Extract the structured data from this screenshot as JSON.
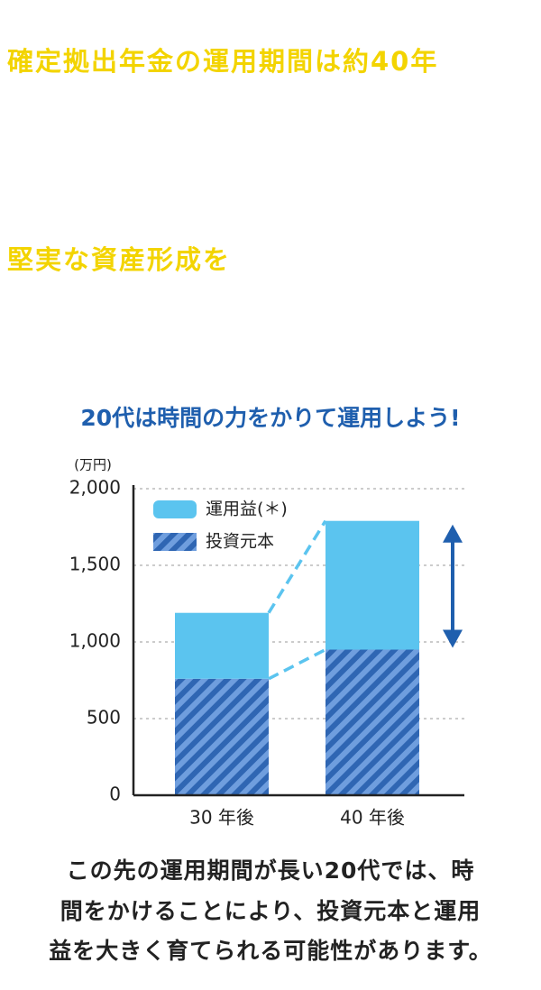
{
  "header": {
    "lines": [
      "確定拠出年金の運用期間は約40年",
      "堅実な資産形成を"
    ]
  },
  "chart_data": {
    "type": "stacked_bar",
    "title": "20代は時間の力をかりて運用しよう!",
    "y_label": "(万円)",
    "categories": [
      "30 年後",
      "40 年後"
    ],
    "series": [
      {
        "name": "投資元本",
        "color": "#2f66b3",
        "pattern": "hatch",
        "values": [
          760,
          950
        ]
      },
      {
        "name": "運用益(＊)",
        "color": "#5bc4ef",
        "values": [
          430,
          840
        ]
      }
    ],
    "ylim": [
      0,
      2000
    ],
    "yticks": [
      0,
      500,
      {
        "value": 1000,
        "label": "1,000"
      },
      {
        "value": 1500,
        "label": "1,500"
      },
      {
        "value": 2000,
        "label": "2,000"
      }
    ],
    "grid": true
  },
  "caption": {
    "lines": [
      "この先の運用期間が長い20代では、時",
      "間をかけることにより、投資元本と運用",
      "益を大きく育てられる可能性があります。"
    ]
  }
}
